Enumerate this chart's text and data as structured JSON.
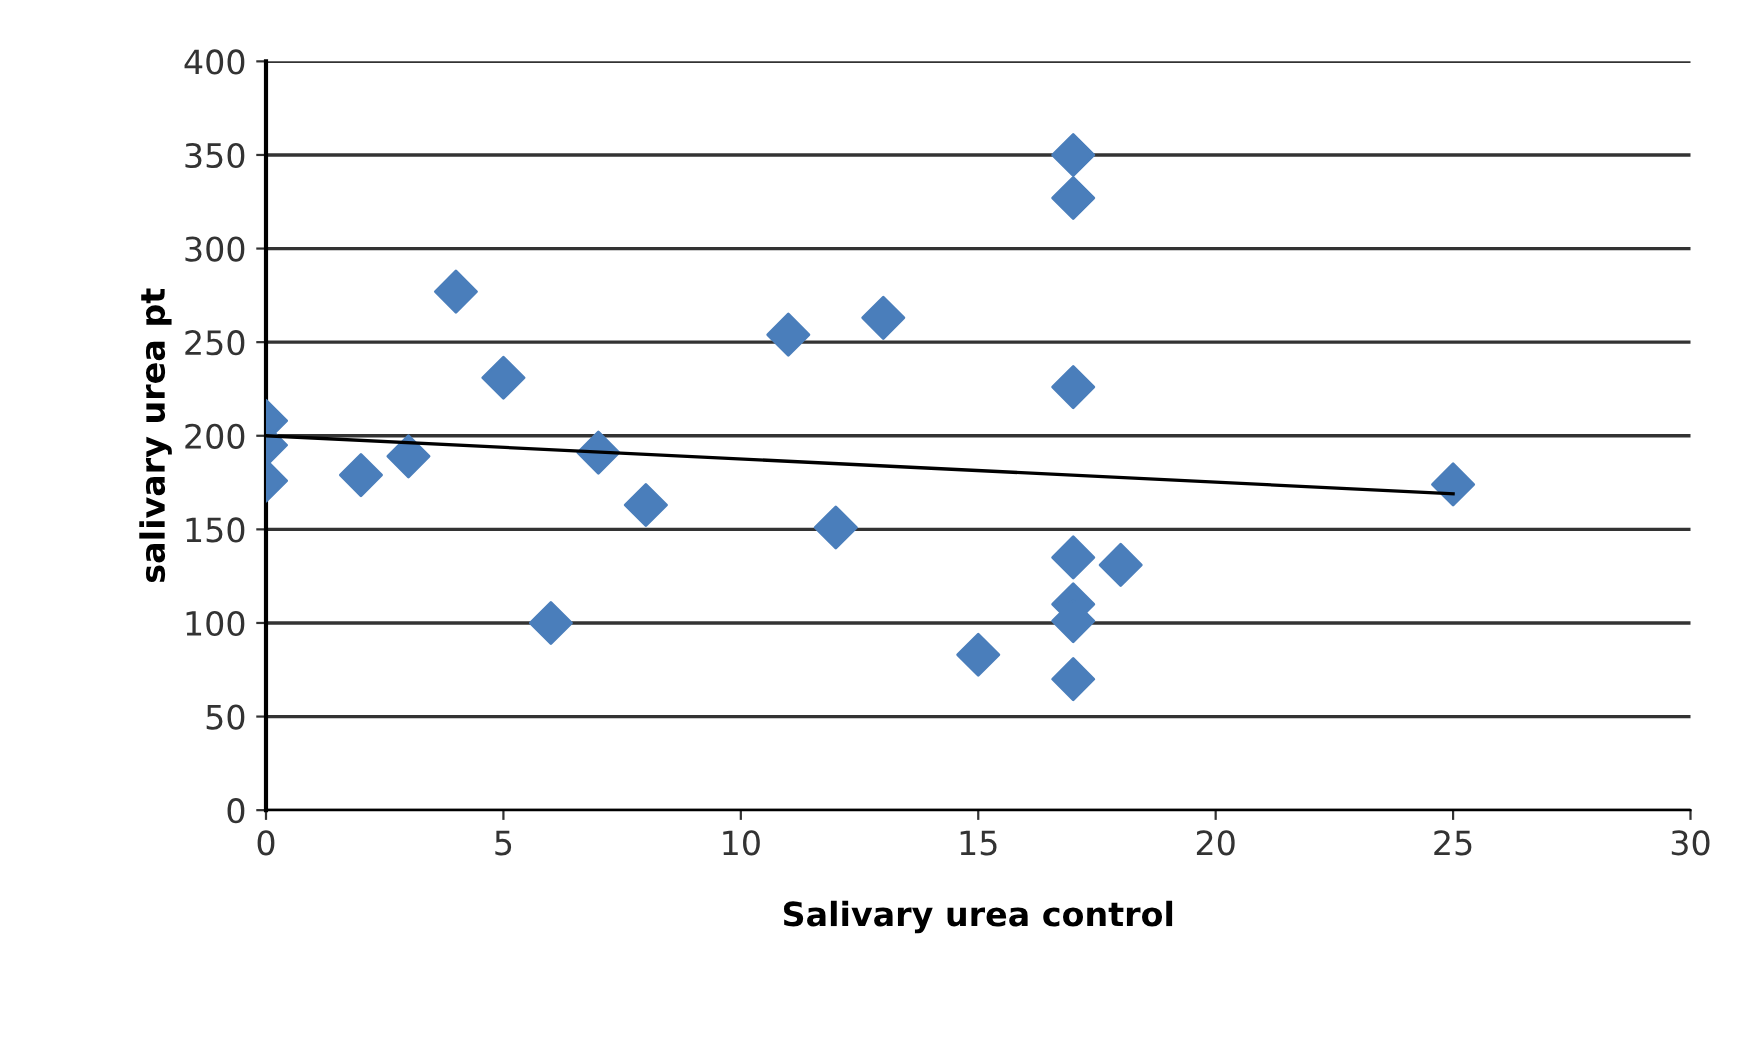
{
  "chart_data": {
    "type": "scatter",
    "xlabel": "Salivary urea control",
    "ylabel": "salivary urea pt",
    "xlim": [
      0,
      30
    ],
    "xticks": [
      0,
      5,
      10,
      15,
      20,
      25,
      30
    ],
    "ylim": [
      0,
      400
    ],
    "yticks": [
      0,
      50,
      100,
      150,
      200,
      250,
      300,
      350,
      400
    ],
    "grid": "y",
    "legend": false,
    "series": [
      {
        "marker": "diamond",
        "color": "#4a7ebb",
        "x": [
          0,
          0,
          0,
          2,
          3,
          4,
          5,
          6,
          7,
          8,
          11,
          12,
          13,
          15,
          17,
          17,
          17,
          17,
          17,
          17,
          17,
          18,
          25
        ],
        "values": [
          208,
          195,
          176,
          179,
          189,
          277,
          231,
          100,
          191,
          163,
          254,
          151,
          263,
          83,
          350,
          327,
          226,
          135,
          110,
          101,
          70,
          131,
          174
        ]
      },
      {
        "type": "line",
        "marker": "none",
        "color": "#000000",
        "x": [
          0,
          25
        ],
        "values": [
          200,
          169
        ]
      }
    ]
  }
}
